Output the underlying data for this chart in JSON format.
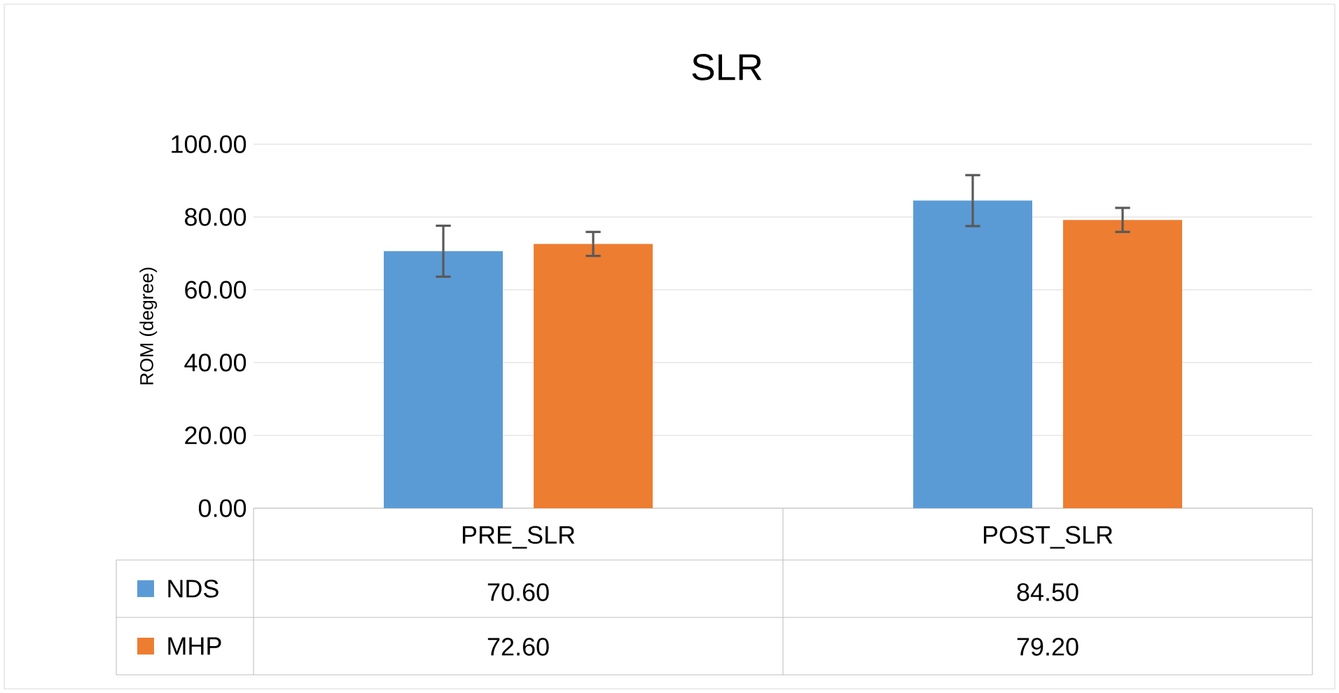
{
  "chart_data": {
    "type": "bar",
    "title": "SLR",
    "ylabel": "ROM (degree)",
    "categories": [
      "PRE_SLR",
      "POST_SLR"
    ],
    "series": [
      {
        "name": "NDS",
        "color": "#5b9bd5",
        "values": [
          70.6,
          84.5
        ],
        "value_labels": [
          "70.60",
          "84.50"
        ],
        "errors": [
          7,
          7
        ]
      },
      {
        "name": "MHP",
        "color": "#ed7d31",
        "values": [
          72.6,
          79.2
        ],
        "value_labels": [
          "72.60",
          "79.20"
        ],
        "errors": [
          3.3,
          3.3
        ]
      }
    ],
    "ylim": [
      0,
      100
    ],
    "yticks": [
      {
        "value": 0,
        "label": "0.00"
      },
      {
        "value": 20,
        "label": "20.00"
      },
      {
        "value": 40,
        "label": "40.00"
      },
      {
        "value": 60,
        "label": "60.00"
      },
      {
        "value": 80,
        "label": "80.00"
      },
      {
        "value": 100,
        "label": "100.00"
      }
    ],
    "grid": "y",
    "legend": "bottom"
  }
}
